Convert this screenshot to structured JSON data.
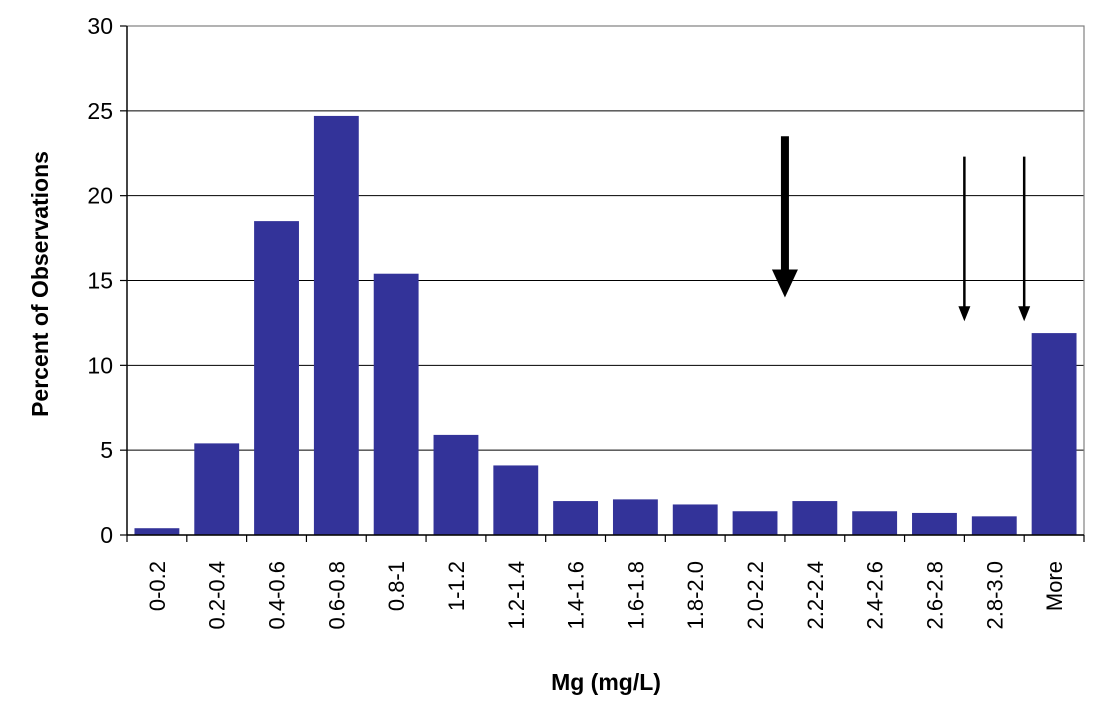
{
  "chart_data": {
    "type": "bar",
    "title": "",
    "xlabel": "Mg (mg/L)",
    "ylabel": "Percent of Observations",
    "categories": [
      "0-0.2",
      "0.2-0.4",
      "0.4-0.6",
      "0.6-0.8",
      "0.8-1",
      "1-1.2",
      "1.2-1.4",
      "1.4-1.6",
      "1.6-1.8",
      "1.8-2.0",
      "2.0-2.2",
      "2.2-2.4",
      "2.4-2.6",
      "2.6-2.8",
      "2.8-3.0",
      "More"
    ],
    "values": [
      0.4,
      5.4,
      18.5,
      24.7,
      15.4,
      5.9,
      4.1,
      2.0,
      2.1,
      1.8,
      1.4,
      2.0,
      1.4,
      1.3,
      1.1,
      11.9
    ],
    "ylim": [
      0,
      30
    ],
    "yticks": [
      "0",
      "5",
      "10",
      "15",
      "20",
      "25",
      "30"
    ],
    "grid": true,
    "legend": "none",
    "bar_color": "#333399",
    "annotations": [
      {
        "type": "arrow",
        "style": "thick",
        "x_between": [
          "2.0-2.2",
          "2.2-2.4"
        ],
        "y_from": 23.5,
        "y_to": 14.0
      },
      {
        "type": "arrow",
        "style": "thin",
        "x_between": [
          "2.6-2.8",
          "2.8-3.0"
        ],
        "y_from": 22.3,
        "y_to": 12.6
      },
      {
        "type": "arrow",
        "style": "thin",
        "x_between": [
          "2.8-3.0",
          "More"
        ],
        "y_from": 22.3,
        "y_to": 12.6
      }
    ]
  }
}
